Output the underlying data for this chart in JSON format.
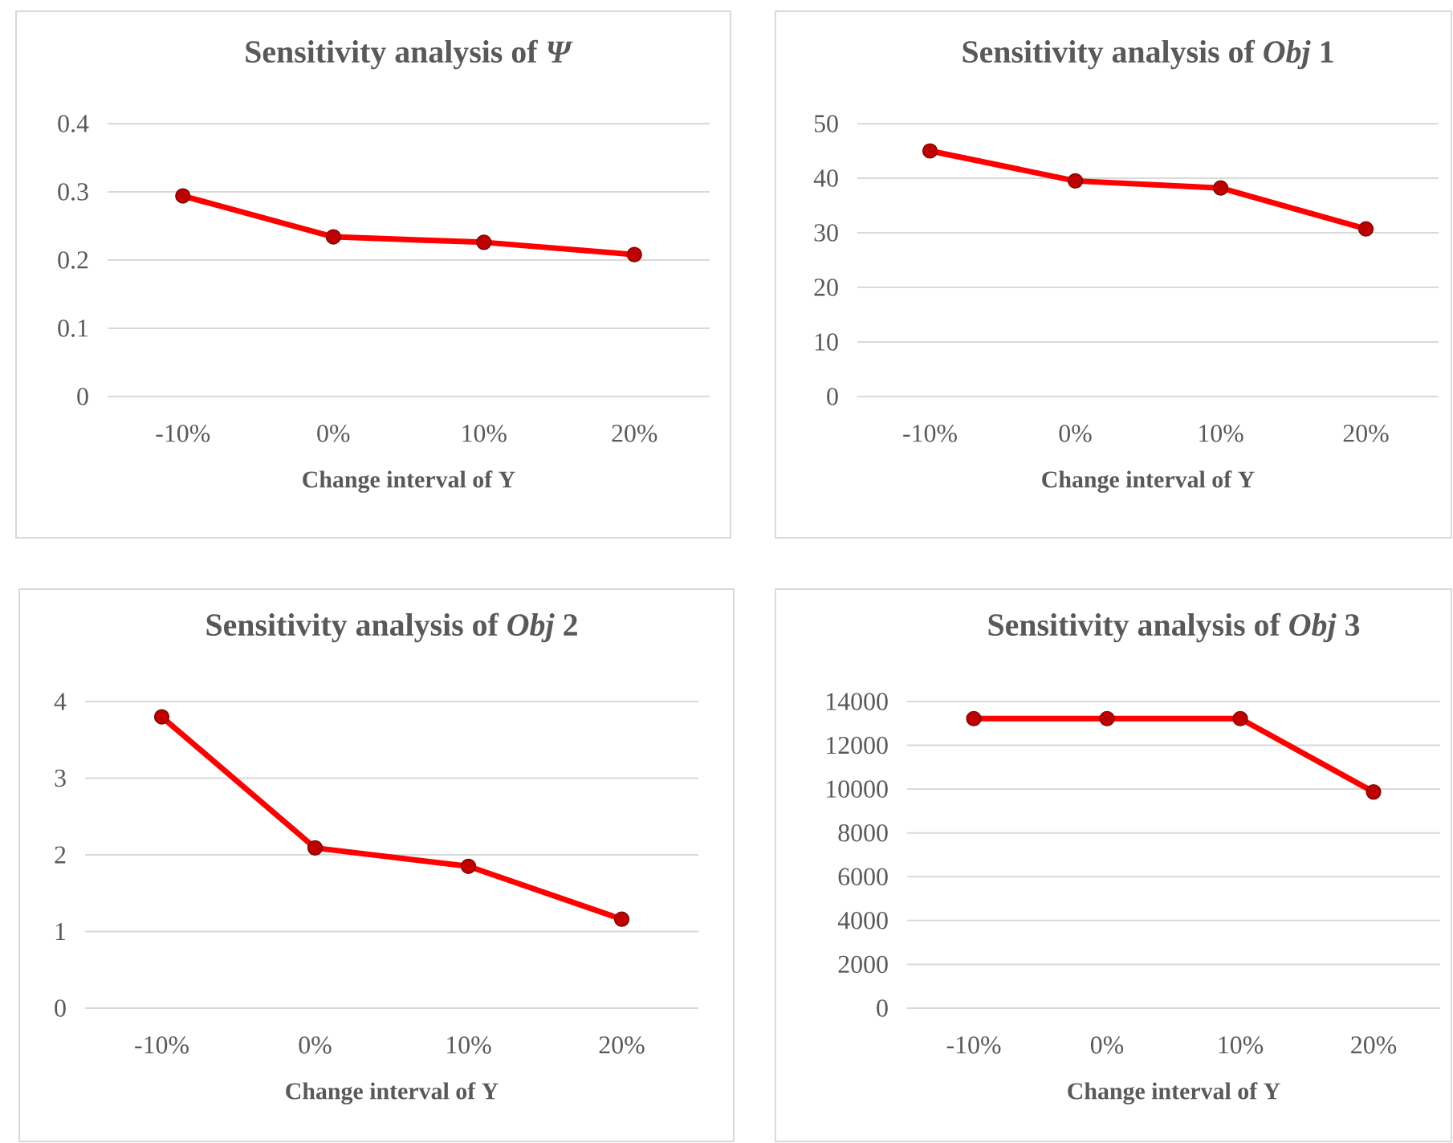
{
  "chart_data": [
    {
      "type": "line",
      "title": "Sensitivity analysis of *Ψ*",
      "xlabel": "Change interval of Υ",
      "categories": [
        "-10%",
        "0%",
        "10%",
        "20%"
      ],
      "values": [
        0.294,
        0.234,
        0.226,
        0.208
      ],
      "color": "#ff0000",
      "ylim": [
        0,
        0.4
      ],
      "yticks": [
        0,
        0.1,
        0.2,
        0.3,
        0.4
      ],
      "grid": "y",
      "marker": "circle"
    },
    {
      "type": "line",
      "title": "Sensitivity analysis of *Obj* 1",
      "xlabel": "Change interval of Υ",
      "categories": [
        "-10%",
        "0%",
        "10%",
        "20%"
      ],
      "values": [
        45.0,
        39.5,
        38.2,
        30.7
      ],
      "color": "#ff0000",
      "ylim": [
        0,
        50
      ],
      "yticks": [
        0,
        10,
        20,
        30,
        40,
        50
      ],
      "grid": "y",
      "marker": "circle"
    },
    {
      "type": "line",
      "title": "Sensitivity analysis of *Obj* 2",
      "xlabel": "Change interval of Υ",
      "categories": [
        "-10%",
        "0%",
        "10%",
        "20%"
      ],
      "values": [
        3.8,
        2.09,
        1.85,
        1.16
      ],
      "color": "#ff0000",
      "ylim": [
        0,
        4
      ],
      "yticks": [
        0,
        1,
        2,
        3,
        4
      ],
      "grid": "y",
      "marker": "circle"
    },
    {
      "type": "line",
      "title": "Sensitivity analysis of *Obj* 3",
      "xlabel": "Change interval of Υ",
      "categories": [
        "-10%",
        "0%",
        "10%",
        "20%"
      ],
      "values": [
        13220,
        13220,
        13220,
        9870
      ],
      "color": "#ff0000",
      "ylim": [
        0,
        14000
      ],
      "yticks": [
        0,
        2000,
        4000,
        6000,
        8000,
        10000,
        12000,
        14000
      ],
      "grid": "y",
      "marker": "circle"
    }
  ]
}
